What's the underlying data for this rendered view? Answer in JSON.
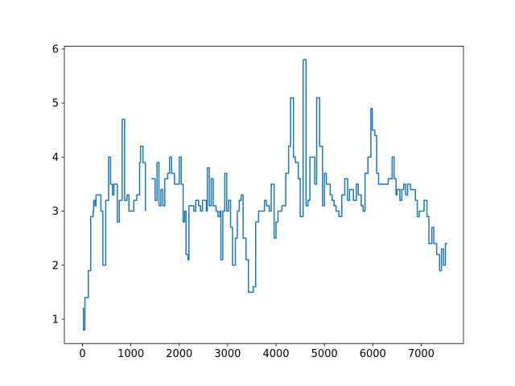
{
  "chart_data": {
    "type": "line",
    "drawstyle": "steps-post",
    "color": "#1f77b4",
    "grid": false,
    "x": [
      0,
      20,
      50,
      120,
      170,
      220,
      230,
      260,
      280,
      380,
      420,
      480,
      540,
      580,
      620,
      650,
      720,
      760,
      820,
      870,
      920,
      960,
      1060,
      1120,
      1180,
      1200,
      1250,
      1300,
      1330,
      1420,
      1500,
      1540,
      1580,
      1620,
      1660,
      1700,
      1760,
      1800,
      1840,
      1900,
      2000,
      2040,
      2080,
      2110,
      2140,
      2180,
      2200,
      2300,
      2340,
      2400,
      2440,
      2480,
      2560,
      2580,
      2620,
      2660,
      2700,
      2760,
      2800,
      2840,
      2860,
      2900,
      2940,
      2980,
      3020,
      3060,
      3100,
      3160,
      3200,
      3240,
      3280,
      3320,
      3380,
      3430,
      3530,
      3580,
      3640,
      3760,
      3800,
      3860,
      3900,
      3960,
      4000,
      4040,
      4120,
      4200,
      4260,
      4300,
      4360,
      4400,
      4460,
      4500,
      4560,
      4620,
      4660,
      4700,
      4800,
      4840,
      4900,
      4960,
      5000,
      5040,
      5120,
      5160,
      5200,
      5240,
      5300,
      5360,
      5420,
      5480,
      5520,
      5600,
      5660,
      5700,
      5760,
      5800,
      5840,
      5900,
      5960,
      5990,
      6040,
      6080,
      6120,
      6320,
      6400,
      6440,
      6480,
      6500,
      6560,
      6600,
      6640,
      6680,
      6720,
      6780,
      6880,
      6920,
      6960,
      7060,
      7120,
      7160,
      7220,
      7260,
      7320,
      7380,
      7420,
      7460,
      7500,
      7540
    ],
    "values": [
      1.2,
      0.8,
      1.4,
      1.9,
      2.9,
      3.0,
      3.2,
      3.1,
      3.3,
      3.0,
      2.0,
      3.2,
      4.0,
      3.5,
      3.3,
      3.5,
      2.8,
      3.2,
      4.7,
      3.2,
      3.3,
      3.0,
      3.2,
      3.3,
      3.9,
      4.2,
      3.9,
      3.0,
      null,
      3.6,
      3.2,
      3.9,
      3.1,
      3.4,
      3.1,
      3.6,
      3.7,
      4.0,
      3.7,
      3.5,
      4.0,
      3.5,
      2.8,
      3.0,
      2.2,
      2.1,
      3.1,
      3.0,
      3.2,
      3.1,
      3.0,
      3.2,
      3.0,
      3.8,
      3.1,
      3.6,
      3.1,
      3.0,
      2.9,
      3.0,
      2.1,
      3.0,
      3.7,
      3.0,
      3.2,
      2.7,
      2.0,
      2.5,
      3.0,
      3.2,
      3.3,
      2.5,
      2.1,
      1.5,
      1.6,
      2.8,
      3.0,
      3.2,
      3.1,
      3.0,
      3.5,
      2.5,
      2.8,
      3.0,
      3.1,
      3.7,
      4.2,
      5.1,
      4.0,
      3.9,
      3.6,
      2.9,
      5.8,
      3.1,
      3.2,
      4.0,
      3.5,
      5.1,
      4.2,
      3.1,
      3.7,
      3.5,
      3.3,
      3.2,
      3.1,
      3.0,
      2.9,
      3.3,
      3.6,
      3.2,
      3.4,
      3.2,
      3.5,
      3.3,
      3.1,
      3.0,
      3.7,
      4.0,
      4.9,
      4.5,
      4.4,
      3.7,
      3.5,
      3.6,
      4.0,
      3.6,
      3.3,
      3.4,
      3.2,
      3.4,
      3.5,
      3.3,
      3.5,
      3.4,
      3.2,
      2.9,
      3.0,
      3.2,
      2.9,
      2.4,
      2.7,
      2.4,
      2.2,
      1.9,
      2.3,
      2.0,
      2.4,
      2.4
    ],
    "xlim": [
      -375,
      7875
    ],
    "ylim": [
      0.55,
      6.05
    ],
    "xticks": [
      0,
      1000,
      2000,
      3000,
      4000,
      5000,
      6000,
      7000
    ],
    "yticks": [
      1,
      2,
      3,
      4,
      5,
      6
    ]
  }
}
